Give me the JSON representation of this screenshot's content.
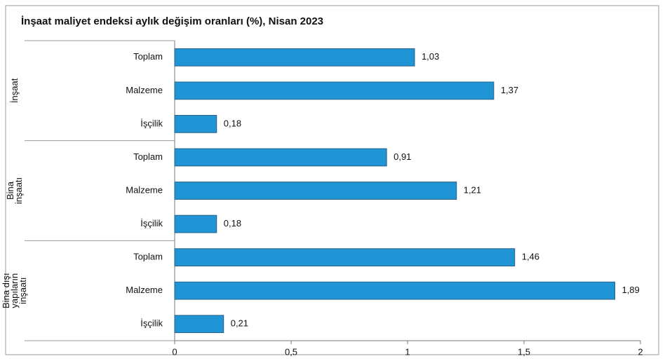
{
  "chart_data": {
    "type": "bar",
    "orientation": "horizontal",
    "title": "İnşaat maliyet endeksi aylık değişim oranları (%), Nisan 2023",
    "color": "#1f95d6",
    "xlim": [
      0,
      2
    ],
    "xticks": [
      0,
      {
        "value": 0.5,
        "label": "0,5"
      },
      1,
      {
        "value": 1.5,
        "label": "1,5"
      },
      2
    ],
    "groups": [
      {
        "name": [
          "İnşaat"
        ],
        "categories": [
          "Toplam",
          "Malzeme",
          "İşçilik"
        ],
        "values": [
          1.03,
          1.37,
          0.18
        ],
        "value_labels": [
          "1,03",
          "1,37",
          "0,18"
        ]
      },
      {
        "name": [
          "Bina",
          "inşaatı"
        ],
        "categories": [
          "Toplam",
          "Malzeme",
          "İşçilik"
        ],
        "values": [
          0.91,
          1.21,
          0.18
        ],
        "value_labels": [
          "0,91",
          "1,21",
          "0,18"
        ]
      },
      {
        "name": [
          "Bina dışı",
          "yapıların",
          "inşaatı"
        ],
        "categories": [
          "Toplam",
          "Malzeme",
          "İşçilik"
        ],
        "values": [
          1.46,
          1.89,
          0.21
        ],
        "value_labels": [
          "1,46",
          "1,89",
          "0,21"
        ]
      }
    ]
  }
}
